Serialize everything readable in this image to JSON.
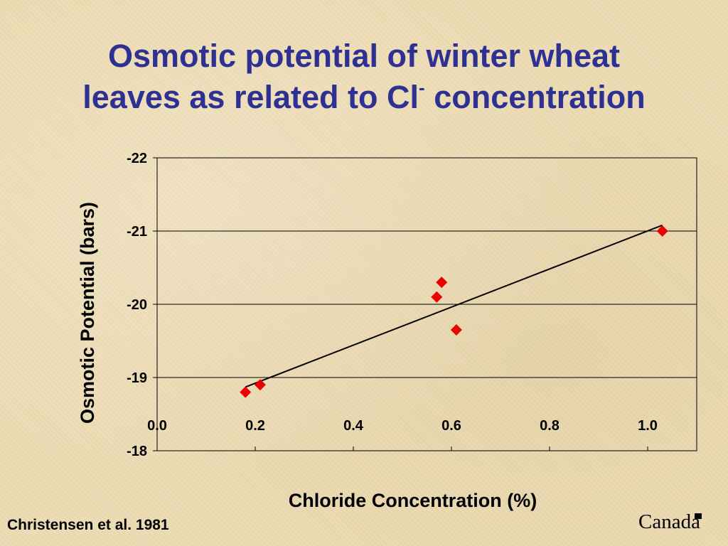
{
  "title": {
    "line1": "Osmotic potential of winter wheat",
    "line2_pre": "leaves as related to Cl",
    "line2_sup": "-",
    "line2_post": " concentration"
  },
  "citation": "Christensen et al. 1981",
  "logo_text": "Canada",
  "colors": {
    "title": "#2e3192",
    "marker": "#e80000",
    "trendline": "#000000",
    "background": "#ecdcb4"
  },
  "chart_data": {
    "type": "scatter",
    "title": "",
    "xlabel": "Chloride Concentration (%)",
    "ylabel": "Osmotic Potential (bars)",
    "xlim": [
      0.0,
      1.1
    ],
    "ylim": [
      -18,
      -22
    ],
    "x_ticks": [
      "0.0",
      "0.2",
      "0.4",
      "0.6",
      "0.8",
      "1.0"
    ],
    "y_ticks": [
      "-22",
      "-21",
      "-20",
      "-19",
      "-18"
    ],
    "grid": "horizontal",
    "legend": "none",
    "x_tick_labels_position": "at y = -19",
    "series": [
      {
        "marker": "diamond",
        "points": [
          {
            "x": 0.18,
            "y": -18.8
          },
          {
            "x": 0.21,
            "y": -18.9
          },
          {
            "x": 0.57,
            "y": -20.1
          },
          {
            "x": 0.58,
            "y": -20.3
          },
          {
            "x": 0.61,
            "y": -19.65
          },
          {
            "x": 1.03,
            "y": -21.0
          }
        ]
      }
    ],
    "trendline": {
      "x1": 0.18,
      "y1": -18.87,
      "x2": 1.03,
      "y2": -21.08
    }
  }
}
